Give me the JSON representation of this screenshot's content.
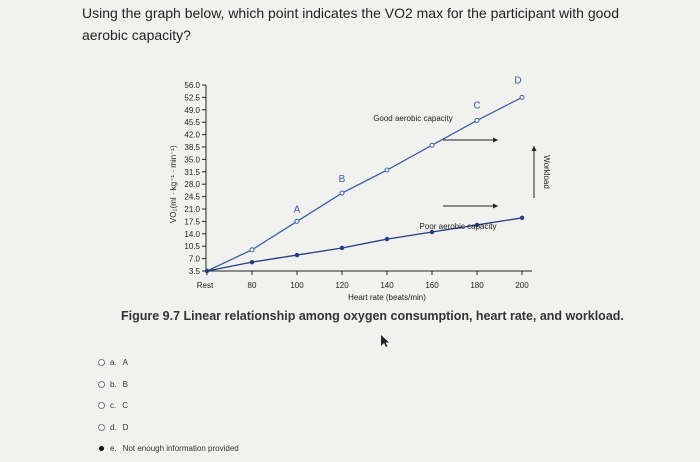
{
  "question": {
    "text": "Using the graph below, which point indicates the VO2 max for the participant with good aerobic capacity?"
  },
  "figure": {
    "caption_label": "Figure 9.7",
    "caption_text": "Linear relationship among oxygen consumption, heart rate, and workload."
  },
  "chart_data": {
    "type": "line",
    "xlabel": "Heart rate (beats/min)",
    "ylabel": "VO₂(ml · kg⁻¹ · min⁻¹)",
    "x_ticks": [
      "Rest",
      "80",
      "100",
      "120",
      "140",
      "160",
      "180",
      "200"
    ],
    "y_ticks": [
      "3.5",
      "7.0",
      "10.5",
      "14.0",
      "17.5",
      "21.0",
      "24.5",
      "28.0",
      "31.5",
      "35.0",
      "38.5",
      "42.0",
      "45.5",
      "49.0",
      "52.5",
      "56.0"
    ],
    "ylim": [
      3.5,
      56.0
    ],
    "series": [
      {
        "name": "Good aerobic capacity",
        "x": [
          60,
          80,
          100,
          120,
          140,
          160,
          180,
          200
        ],
        "y": [
          3.5,
          9.5,
          17.5,
          25.5,
          32.0,
          39.0,
          46.0,
          52.5
        ]
      },
      {
        "name": "Poor aerobic capacity",
        "x": [
          60,
          80,
          100,
          120,
          140,
          160,
          180,
          200
        ],
        "y": [
          3.5,
          6.0,
          8.0,
          10.0,
          12.5,
          14.5,
          16.5,
          18.5
        ]
      }
    ],
    "point_labels": [
      {
        "label": "A",
        "x": 100,
        "y": 17.5
      },
      {
        "label": "B",
        "x": 120,
        "y": 25.5
      },
      {
        "label": "C",
        "x": 180,
        "y": 46.0
      },
      {
        "label": "D",
        "x": 200,
        "y": 52.5
      }
    ],
    "workload_label": "Workload",
    "legend": "inline"
  },
  "options": [
    {
      "letter": "a.",
      "text": "A",
      "selected": false
    },
    {
      "letter": "b.",
      "text": "B",
      "selected": false
    },
    {
      "letter": "c.",
      "text": "C",
      "selected": false
    },
    {
      "letter": "d.",
      "text": "D",
      "selected": false
    },
    {
      "letter": "e.",
      "text": "Not enough information provided",
      "selected": true
    }
  ]
}
